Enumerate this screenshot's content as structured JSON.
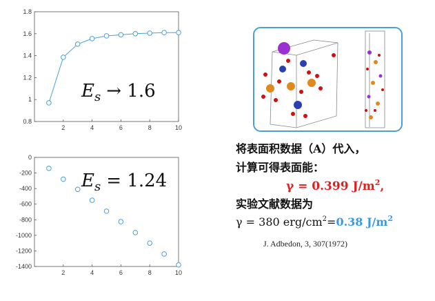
{
  "chart_data": [
    {
      "type": "line",
      "color": "#4a9fd5",
      "x": [
        1,
        2,
        3,
        4,
        5,
        6,
        7,
        8,
        9,
        10
      ],
      "values": [
        0.97,
        1.385,
        1.505,
        1.555,
        1.58,
        1.59,
        1.6,
        1.605,
        1.61,
        1.61
      ],
      "xlim": [
        0,
        10
      ],
      "xticks": [
        2,
        4,
        6,
        8,
        10
      ],
      "ylim": [
        0.8,
        1.8
      ],
      "yticks": [
        0.8,
        1,
        1.2,
        1.4,
        1.6,
        1.8
      ],
      "annotation": {
        "symbol": "E",
        "subscript": "s",
        "text": "→ 1.6"
      }
    },
    {
      "type": "scatter",
      "color": "#4a9fd5",
      "x": [
        1,
        2,
        3,
        4,
        5,
        6,
        7,
        8,
        9,
        10
      ],
      "values": [
        -140,
        -280,
        -410,
        -550,
        -690,
        -825,
        -965,
        -1100,
        -1240,
        -1380
      ],
      "xlim": [
        0,
        10
      ],
      "xticks": [
        2,
        4,
        6,
        8,
        10
      ],
      "ylim": [
        -1400,
        0
      ],
      "yticks": [
        0,
        -200,
        -400,
        -600,
        -800,
        -1000,
        -1200,
        -1400
      ],
      "annotation": {
        "symbol": "E",
        "subscript": "s",
        "text": "= 1.24"
      }
    }
  ],
  "text": {
    "line1": "将表面积数据（A）代入，",
    "line2": "计算可得表面能：",
    "result": {
      "prefix": "γ = 0.399 J/m",
      "sup": "2",
      "suffix": ","
    },
    "line4": "实验文献数据为",
    "literature": {
      "prefix": "γ = 380 erg/cm",
      "sup": "2",
      "equals": "=",
      "value": "0.38 J/m",
      "sup2": "2"
    },
    "citation": "J. Adbedon, 3, 307(1972)"
  }
}
